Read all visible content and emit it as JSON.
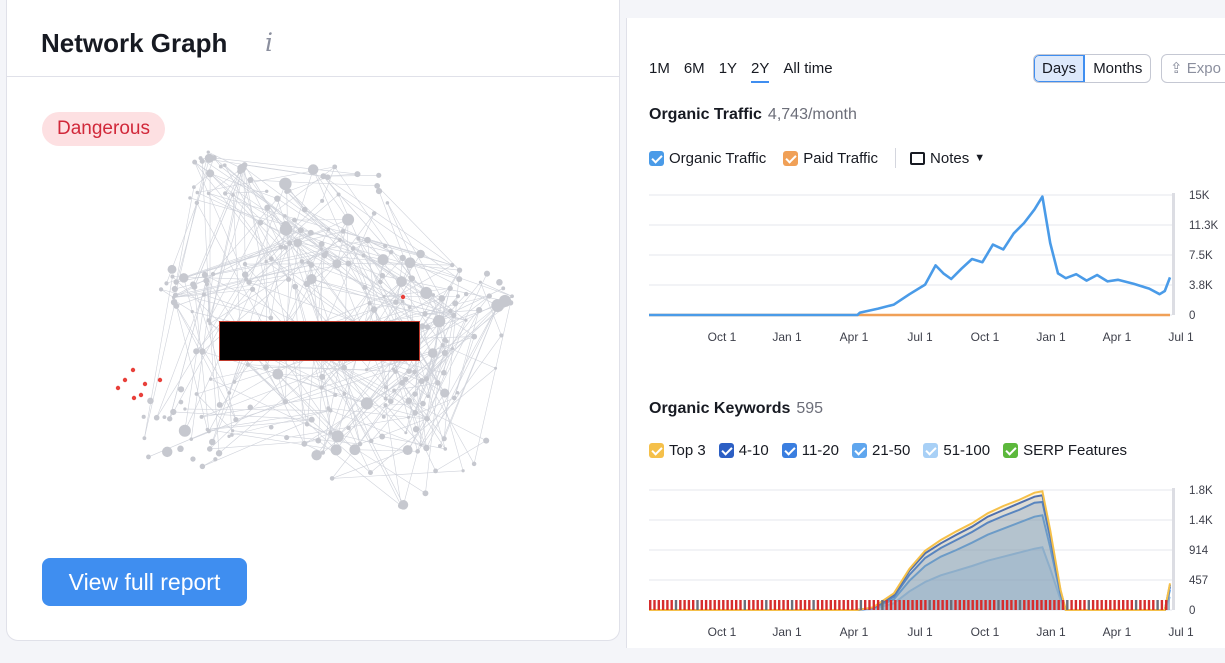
{
  "left": {
    "title": "Network Graph",
    "info_glyph": "i",
    "badge": "Dangerous",
    "cta": "View full report"
  },
  "right": {
    "periods": [
      "1M",
      "6M",
      "1Y",
      "2Y",
      "All time"
    ],
    "active_period": "2Y",
    "granularity": [
      "Days",
      "Months"
    ],
    "active_granularity": "Days",
    "export_label": "Expo",
    "traffic": {
      "title": "Organic Traffic",
      "value": "4,743/month",
      "legend": [
        {
          "label": "Organic Traffic",
          "color": "#4a9be8"
        },
        {
          "label": "Paid Traffic",
          "color": "#f0a057"
        }
      ],
      "notes_label": "Notes"
    },
    "keywords": {
      "title": "Organic Keywords",
      "value": "595",
      "legend": [
        {
          "label": "Top 3",
          "color": "#f5c04a"
        },
        {
          "label": "4-10",
          "color": "#2c5fc4"
        },
        {
          "label": "11-20",
          "color": "#3a7ee0"
        },
        {
          "label": "21-50",
          "color": "#5fa6ee"
        },
        {
          "label": "51-100",
          "color": "#a8d0f6"
        },
        {
          "label": "SERP Features",
          "color": "#5cb83c"
        }
      ]
    }
  },
  "chart_data": [
    {
      "type": "line",
      "x_labels": [
        "Oct 1",
        "Jan 1",
        "Apr 1",
        "Jul 1",
        "Oct 1",
        "Jan 1",
        "Apr 1",
        "Jul 1"
      ],
      "y_ticks": [
        "15K",
        "11.3K",
        "7.5K",
        "3.8K",
        "0"
      ],
      "ylim": [
        0,
        15000
      ],
      "series": [
        {
          "name": "Organic Traffic",
          "color": "#4a9be8",
          "points": [
            [
              0,
              0
            ],
            [
              0.2,
              0
            ],
            [
              0.3,
              0
            ],
            [
              0.4,
              0
            ],
            [
              0.405,
              300
            ],
            [
              0.44,
              800
            ],
            [
              0.47,
              1300
            ],
            [
              0.5,
              2600
            ],
            [
              0.53,
              3800
            ],
            [
              0.55,
              6200
            ],
            [
              0.565,
              5200
            ],
            [
              0.58,
              4500
            ],
            [
              0.6,
              5800
            ],
            [
              0.62,
              7000
            ],
            [
              0.64,
              6600
            ],
            [
              0.66,
              8800
            ],
            [
              0.68,
              8200
            ],
            [
              0.7,
              10200
            ],
            [
              0.72,
              11500
            ],
            [
              0.74,
              13200
            ],
            [
              0.755,
              14800
            ],
            [
              0.77,
              9000
            ],
            [
              0.785,
              5200
            ],
            [
              0.8,
              4600
            ],
            [
              0.82,
              5100
            ],
            [
              0.84,
              4300
            ],
            [
              0.86,
              5000
            ],
            [
              0.88,
              4200
            ],
            [
              0.9,
              4400
            ],
            [
              0.93,
              3900
            ],
            [
              0.96,
              3300
            ],
            [
              0.98,
              2600
            ],
            [
              0.99,
              3000
            ],
            [
              1.0,
              4700
            ]
          ]
        },
        {
          "name": "Paid Traffic",
          "color": "#f0a057",
          "points": [
            [
              0,
              0
            ],
            [
              1,
              0
            ]
          ]
        }
      ]
    },
    {
      "type": "area",
      "x_labels": [
        "Oct 1",
        "Jan 1",
        "Apr 1",
        "Jul 1",
        "Oct 1",
        "Jan 1",
        "Apr 1",
        "Jul 1"
      ],
      "y_ticks": [
        "1.8K",
        "1.4K",
        "914",
        "457",
        "0"
      ],
      "ylim": [
        0,
        1800
      ],
      "x": [
        0,
        0.4,
        0.43,
        0.47,
        0.5,
        0.53,
        0.56,
        0.59,
        0.62,
        0.65,
        0.68,
        0.71,
        0.74,
        0.755,
        0.77,
        0.79,
        0.8,
        0.99,
        1.0
      ],
      "series": [
        {
          "name": "Top 3",
          "values": [
            0,
            0,
            40,
            250,
            620,
            890,
            1050,
            1180,
            1300,
            1450,
            1560,
            1650,
            1760,
            1780,
            1200,
            300,
            0,
            0,
            400
          ]
        },
        {
          "name": "4-10",
          "values": [
            0,
            0,
            35,
            230,
            590,
            850,
            1000,
            1130,
            1250,
            1400,
            1500,
            1600,
            1700,
            1720,
            1150,
            280,
            0,
            0,
            380
          ]
        },
        {
          "name": "11-20",
          "values": [
            0,
            0,
            30,
            200,
            530,
            780,
            930,
            1050,
            1170,
            1310,
            1410,
            1500,
            1610,
            1620,
            1080,
            250,
            0,
            0,
            350
          ]
        },
        {
          "name": "21-50",
          "values": [
            0,
            0,
            25,
            160,
            440,
            660,
            800,
            900,
            1010,
            1130,
            1220,
            1310,
            1400,
            1420,
            940,
            220,
            0,
            0,
            300
          ]
        },
        {
          "name": "51-100",
          "values": [
            0,
            0,
            15,
            100,
            280,
            420,
            520,
            590,
            660,
            740,
            800,
            860,
            920,
            940,
            620,
            150,
            0,
            0,
            200
          ]
        }
      ]
    }
  ]
}
